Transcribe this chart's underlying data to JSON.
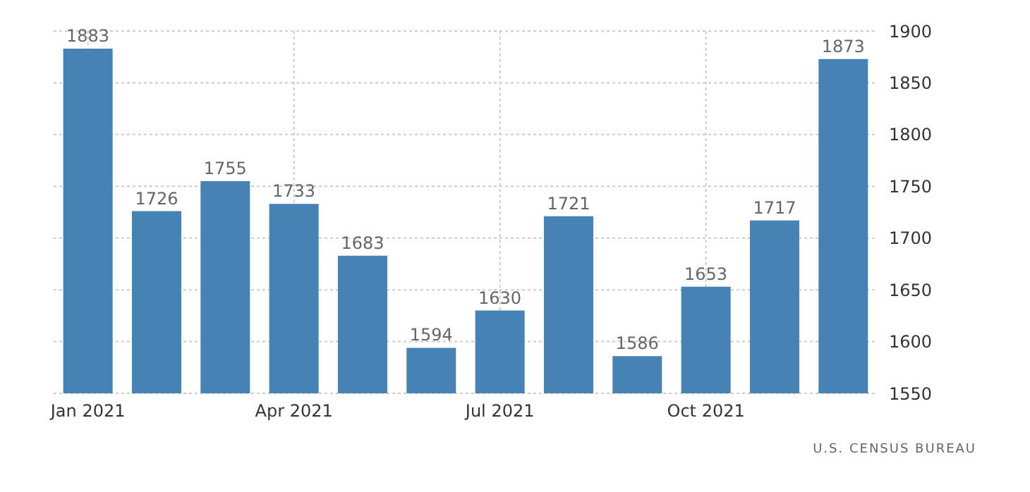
{
  "chart_data": {
    "type": "bar",
    "categories": [
      "Jan 2021",
      null,
      null,
      "Apr 2021",
      null,
      null,
      "Jul 2021",
      null,
      null,
      "Oct 2021",
      null,
      null
    ],
    "values": [
      1883,
      1726,
      1755,
      1733,
      1683,
      1594,
      1630,
      1721,
      1586,
      1653,
      1717,
      1873
    ],
    "color": "#4682b4",
    "ylim": [
      1550,
      1900
    ],
    "yticks": [
      1550,
      1600,
      1650,
      1700,
      1750,
      1800,
      1850,
      1900
    ],
    "grid": true,
    "data_labels": true,
    "annotations": [
      "U.S. CENSUS BUREAU"
    ]
  }
}
